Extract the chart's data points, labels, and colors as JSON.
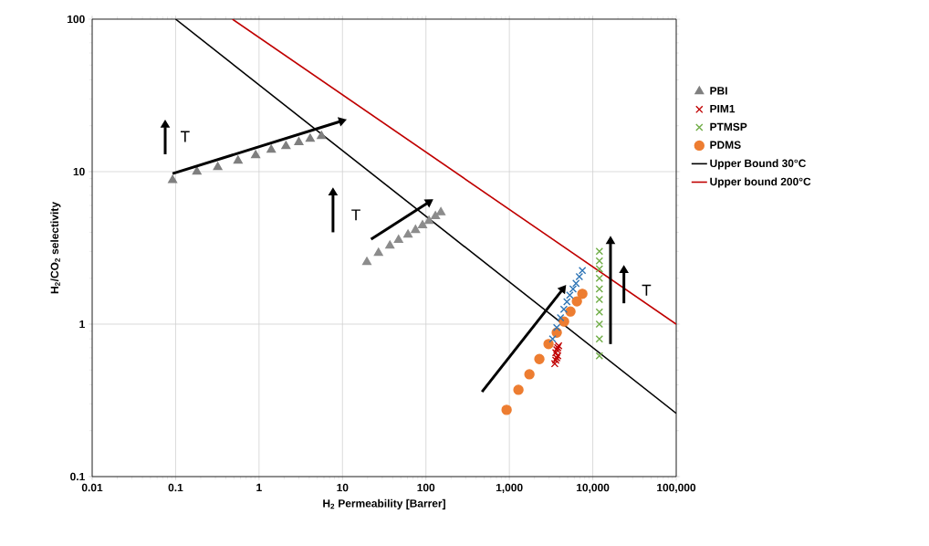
{
  "chart_data": {
    "type": "scatter",
    "xlabel": "H$_{2}$ Permeability [Barrer]",
    "ylabel": "H$_{2}$/CO$_{2}$ selectivity",
    "log": "xy",
    "grid": true,
    "legend": "right",
    "xlim": [
      0.01,
      100000
    ],
    "ylim": [
      0.1,
      100
    ],
    "xticks": [
      0.01,
      0.1,
      1,
      10,
      100,
      {
        "value": 1000,
        "label": "1,000"
      },
      {
        "value": 10000,
        "label": "10,000"
      },
      {
        "value": 100000,
        "label": "100,000"
      }
    ],
    "yticks": [
      0.1,
      1,
      10,
      100
    ],
    "annotations": [
      "T",
      "T",
      "T"
    ],
    "series": [
      {
        "name": "PBI",
        "color": "#7f7f7f",
        "marker": "triangle",
        "x": [
          0.092,
          0.18,
          0.32,
          0.56,
          0.91,
          1.4,
          2.1,
          3.0,
          4.1,
          5.6
        ],
        "values": [
          8.8,
          10,
          10.7,
          11.8,
          12.8,
          13.9,
          14.7,
          15.6,
          16.4,
          17.1
        ]
      },
      {
        "color": "#8c8c8c",
        "marker": "triangle",
        "x": [
          19.6,
          27,
          37,
          47,
          61,
          75,
          91,
          109,
          130,
          151
        ],
        "values": [
          2.55,
          2.93,
          3.27,
          3.56,
          3.86,
          4.14,
          4.44,
          4.75,
          5.1,
          5.4
        ]
      },
      {
        "name": "PIM1",
        "color": "#c00000",
        "marker": "cross",
        "x": [
          3500,
          3600,
          3700,
          3800,
          3600,
          3700,
          3800,
          3900
        ],
        "values": [
          0.55,
          0.58,
          0.6,
          0.62,
          0.65,
          0.68,
          0.7,
          0.72
        ]
      },
      {
        "name": "PTMSP",
        "color": "#70ad47",
        "marker": "cross",
        "x": [
          12000,
          12000,
          12000,
          12000,
          12000,
          12000,
          12000,
          12000,
          12000,
          12000
        ],
        "values": [
          3.0,
          2.6,
          2.3,
          2.0,
          1.7,
          1.45,
          1.2,
          1.0,
          0.8,
          0.62
        ]
      },
      {
        "name": "PDMS",
        "color": "#ed7d31",
        "marker": "circle",
        "x": [
          927,
          1285,
          1740,
          2290,
          2950,
          3700,
          4530,
          5400,
          6450,
          7500
        ],
        "values": [
          0.274,
          0.371,
          0.469,
          0.59,
          0.74,
          0.88,
          1.04,
          1.21,
          1.41,
          1.58
        ]
      },
      {
        "color": "#2e75b6",
        "marker": "cross",
        "x": [
          3300,
          3700,
          4100,
          4500,
          4900,
          5300,
          5800,
          6300,
          6900,
          7500
        ],
        "values": [
          0.8,
          0.95,
          1.1,
          1.25,
          1.4,
          1.55,
          1.7,
          1.85,
          2.05,
          2.25
        ]
      },
      {
        "name": "Upper Bound 30°C",
        "type": "line",
        "color": "#000000",
        "x": [
          0.1,
          100000
        ],
        "values": [
          100,
          0.26
        ]
      },
      {
        "name": "Upper bound 200°C",
        "type": "line",
        "color": "#c00000",
        "x": [
          0.48,
          100000
        ],
        "values": [
          100,
          1.0
        ]
      }
    ]
  }
}
